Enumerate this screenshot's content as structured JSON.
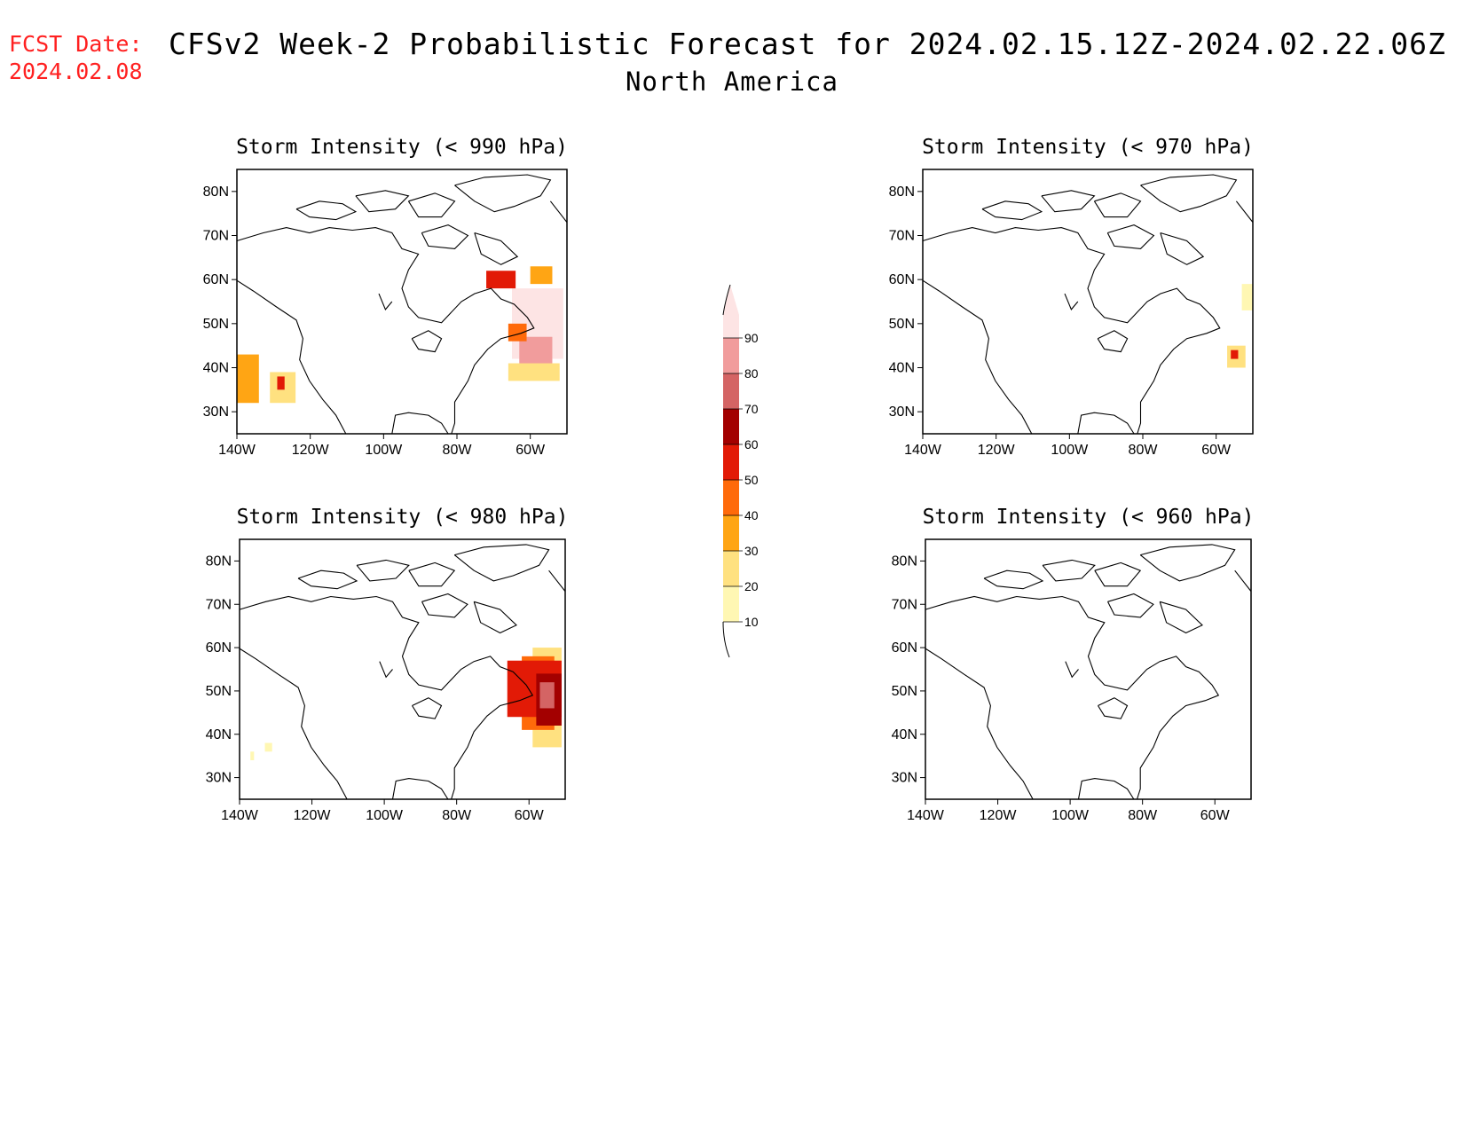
{
  "fcst_label": "FCST Date:",
  "fcst_date": "2024.02.08",
  "title": "CFSv2 Week-2 Probabilistic Forecast for 2024.02.15.12Z-2024.02.22.06Z",
  "subtitle": "North America",
  "colors": {
    "10": "#fff7b3",
    "20": "#ffe180",
    "30": "#ffa514",
    "40": "#ff6a0a",
    "50": "#e21a06",
    "60": "#a30000",
    "70": "#d46464",
    "80": "#f19c9c",
    "90": "#fde4e4"
  },
  "colorbar": {
    "levels": [
      "10",
      "20",
      "30",
      "40",
      "50",
      "60",
      "70",
      "80",
      "90"
    ]
  },
  "map_extent": {
    "lon": [
      -140,
      -50
    ],
    "lat": [
      25,
      85
    ]
  },
  "lat_ticks": [
    "80N",
    "70N",
    "60N",
    "50N",
    "40N",
    "30N"
  ],
  "lon_ticks": [
    "140W",
    "120W",
    "100W",
    "80W",
    "60W"
  ],
  "panels": [
    {
      "id": "p990",
      "title": "Storm Intensity (< 990 hPa)",
      "patches": [
        {
          "level": "90",
          "lon": [
            -65,
            -51
          ],
          "lat": [
            42,
            58
          ]
        },
        {
          "level": "80",
          "lon": [
            -63,
            -54
          ],
          "lat": [
            40,
            47
          ]
        },
        {
          "level": "50",
          "lon": [
            -72,
            -64
          ],
          "lat": [
            58,
            62
          ]
        },
        {
          "level": "20",
          "lon": [
            -66,
            -52
          ],
          "lat": [
            37,
            41
          ]
        },
        {
          "level": "30",
          "lon": [
            -60,
            -54
          ],
          "lat": [
            59,
            63
          ]
        },
        {
          "level": "40",
          "lon": [
            -66,
            -61
          ],
          "lat": [
            46,
            50
          ]
        },
        {
          "level": "30",
          "lon": [
            -140,
            -134
          ],
          "lat": [
            32,
            43
          ]
        },
        {
          "level": "20",
          "lon": [
            -131,
            -124
          ],
          "lat": [
            32,
            39
          ]
        },
        {
          "level": "50",
          "lon": [
            -129,
            -127
          ],
          "lat": [
            35,
            38
          ]
        }
      ]
    },
    {
      "id": "p970",
      "title": "Storm Intensity (< 970 hPa)",
      "patches": [
        {
          "level": "10",
          "lon": [
            -53,
            -50
          ],
          "lat": [
            53,
            59
          ]
        },
        {
          "level": "20",
          "lon": [
            -57,
            -52
          ],
          "lat": [
            40,
            45
          ]
        },
        {
          "level": "50",
          "lon": [
            -56,
            -54
          ],
          "lat": [
            42,
            44
          ]
        }
      ]
    },
    {
      "id": "p980",
      "title": "Storm Intensity (< 980 hPa)",
      "patches": [
        {
          "level": "20",
          "lon": [
            -59,
            -51
          ],
          "lat": [
            37,
            60
          ]
        },
        {
          "level": "40",
          "lon": [
            -62,
            -53
          ],
          "lat": [
            41,
            58
          ]
        },
        {
          "level": "50",
          "lon": [
            -66,
            -51
          ],
          "lat": [
            44,
            57
          ]
        },
        {
          "level": "60",
          "lon": [
            -58,
            -51
          ],
          "lat": [
            42,
            54
          ]
        },
        {
          "level": "70",
          "lon": [
            -57,
            -53
          ],
          "lat": [
            46,
            52
          ]
        },
        {
          "level": "10",
          "lon": [
            -137,
            -136
          ],
          "lat": [
            34,
            36
          ]
        },
        {
          "level": "10",
          "lon": [
            -133,
            -131
          ],
          "lat": [
            36,
            38
          ]
        }
      ]
    },
    {
      "id": "p960",
      "title": "Storm Intensity (< 960 hPa)",
      "patches": []
    }
  ]
}
